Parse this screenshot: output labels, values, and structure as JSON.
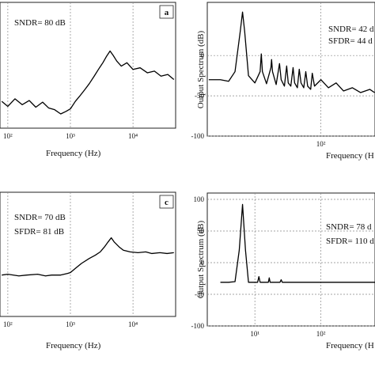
{
  "chart_data": [
    {
      "type": "line",
      "panel_label": "a",
      "annotations": [
        "SNDR= 80 dB"
      ],
      "xlabel": "Frequency (Hz)",
      "xscale": "log",
      "xlim": [
        75,
        48000
      ],
      "ylim": [
        -150,
        0
      ],
      "grid": true,
      "xticks": [
        {
          "value": 100,
          "label": "10²"
        },
        {
          "value": 1000,
          "label": "10³"
        },
        {
          "value": 10000,
          "label": "10⁴"
        }
      ],
      "series": [
        {
          "color": "#000000",
          "x": [
            80,
            100,
            130,
            170,
            220,
            280,
            360,
            450,
            560,
            700,
            850,
            1000,
            1200,
            1400,
            1700,
            2000,
            2400,
            2800,
            3300,
            3800,
            4300,
            4800,
            5500,
            6500,
            8000,
            10000,
            13000,
            17000,
            22000,
            28000,
            36000,
            45000
          ],
          "values": [
            -118,
            -124,
            -115,
            -122,
            -117,
            -125,
            -119,
            -126,
            -128,
            -133,
            -130,
            -127,
            -118,
            -112,
            -104,
            -97,
            -88,
            -80,
            -72,
            -64,
            -58,
            -63,
            -70,
            -76,
            -72,
            -80,
            -78,
            -84,
            -82,
            -88,
            -86,
            -92
          ]
        }
      ]
    },
    {
      "type": "line",
      "annotations": [
        "SNDR= 42 d",
        "SFDR= 44 d"
      ],
      "xlabel": "Frequency (H",
      "ylabel": "Output Spectrum (dB)",
      "xscale": "log",
      "xlim": [
        1.9,
        660
      ],
      "ylim": [
        -100,
        66
      ],
      "grid": true,
      "xticks": [
        {
          "value": 100,
          "label": "10²"
        }
      ],
      "yticks": [
        0,
        -50,
        -100
      ],
      "series": [
        {
          "color": "#000000",
          "x": [
            2,
            3,
            4,
            5,
            6,
            6.5,
            7,
            8,
            10,
            12,
            12.5,
            13,
            15,
            17.5,
            17.9,
            18.5,
            21,
            23.6,
            25,
            28,
            30.3,
            32,
            35,
            37.9,
            40,
            44,
            47,
            50,
            55,
            59,
            63,
            70,
            74,
            80,
            100,
            130,
            170,
            220,
            300,
            400,
            550,
            650
          ],
          "values": [
            -30,
            -30,
            -32,
            -20,
            30,
            54,
            30,
            -25,
            -34,
            -20,
            2,
            -20,
            -35,
            -15,
            -5,
            -20,
            -36,
            -10,
            -30,
            -38,
            -13,
            -34,
            -38,
            -15,
            -34,
            -40,
            -17,
            -34,
            -40,
            -20,
            -38,
            -42,
            -22,
            -38,
            -30,
            -40,
            -34,
            -44,
            -40,
            -46,
            -42,
            -46
          ]
        }
      ]
    },
    {
      "type": "line",
      "panel_label": "c",
      "annotations": [
        "SNDR= 70 dB",
        "SFDR= 81 dB"
      ],
      "xlabel": "Frequency (Hz)",
      "xscale": "log",
      "xlim": [
        75,
        48000
      ],
      "ylim": [
        -150,
        0
      ],
      "grid": true,
      "xticks": [
        {
          "value": 100,
          "label": "10²"
        },
        {
          "value": 1000,
          "label": "10³"
        },
        {
          "value": 10000,
          "label": "10⁴"
        }
      ],
      "series": [
        {
          "color": "#000000",
          "x": [
            80,
            100,
            150,
            200,
            300,
            400,
            500,
            700,
            900,
            1000,
            1200,
            1500,
            2000,
            2500,
            3000,
            3500,
            4000,
            4500,
            5000,
            6000,
            7000,
            9000,
            12000,
            16000,
            20000,
            27000,
            35000,
            45000
          ],
          "values": [
            -100,
            -99,
            -101,
            -100,
            -99,
            -101,
            -100,
            -100,
            -98,
            -97,
            -92,
            -86,
            -80,
            -76,
            -72,
            -66,
            -60,
            -55,
            -60,
            -66,
            -70,
            -72,
            -73,
            -72,
            -74,
            -73,
            -74,
            -73
          ]
        }
      ]
    },
    {
      "type": "line",
      "annotations": [
        "SNDR= 78 d",
        "SFDR= 110 d"
      ],
      "xlabel": "Frequency (H",
      "ylabel": "Output Spectrum (dB)",
      "xscale": "log",
      "xlim": [
        1.9,
        660
      ],
      "ylim": [
        -100,
        110
      ],
      "grid": true,
      "xticks": [
        {
          "value": 10,
          "label": "10¹"
        },
        {
          "value": 100,
          "label": "10²"
        }
      ],
      "yticks": [
        100,
        50,
        0,
        -50,
        -100
      ],
      "series": [
        {
          "color": "#000000",
          "x": [
            3,
            4,
            5,
            5.8,
            6.5,
            7.2,
            8,
            10,
            11,
            11.5,
            12,
            16,
            16.5,
            17,
            24,
            25,
            26,
            40,
            60,
            100,
            200,
            400,
            660
          ],
          "values": [
            -31,
            -31,
            -30,
            20,
            92,
            20,
            -31,
            -31,
            -31,
            -22,
            -31,
            -31,
            -24,
            -31,
            -31,
            -27,
            -31,
            -31,
            -31,
            -31,
            -31,
            -31,
            -31
          ]
        }
      ]
    }
  ]
}
